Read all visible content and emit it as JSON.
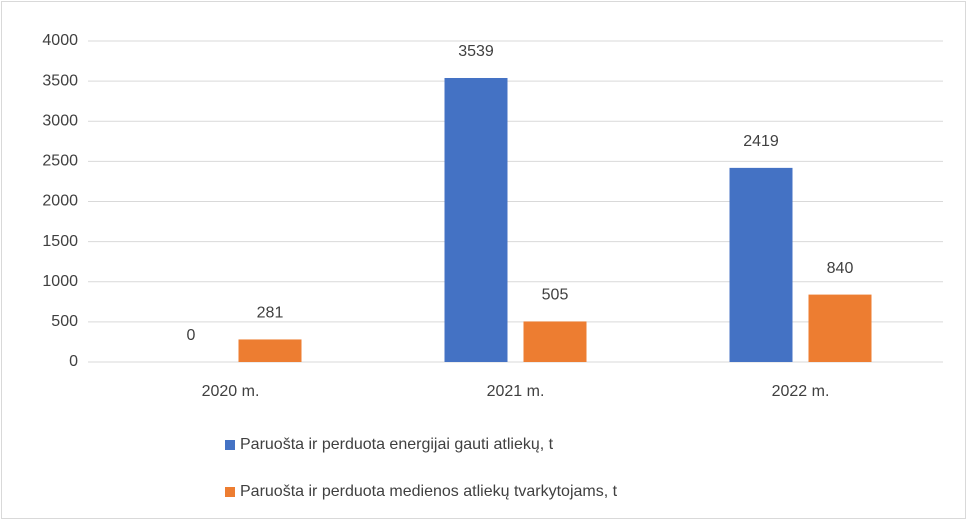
{
  "chart_data": {
    "type": "bar",
    "categories": [
      "2020 m.",
      "2021 m.",
      "2022 m."
    ],
    "series": [
      {
        "name": "Paruošta ir perduota energijai gauti atliekų, t",
        "color": "#4472c4",
        "values": [
          0,
          3539,
          2419
        ]
      },
      {
        "name": "Paruošta ir perduota medienos atliekų tvarkytojams, t",
        "color": "#ed7d31",
        "values": [
          281,
          505,
          840
        ]
      }
    ],
    "ylim": [
      0,
      4000
    ],
    "yticks": [
      0,
      500,
      1000,
      1500,
      2000,
      2500,
      3000,
      3500,
      4000
    ],
    "grid": true
  }
}
